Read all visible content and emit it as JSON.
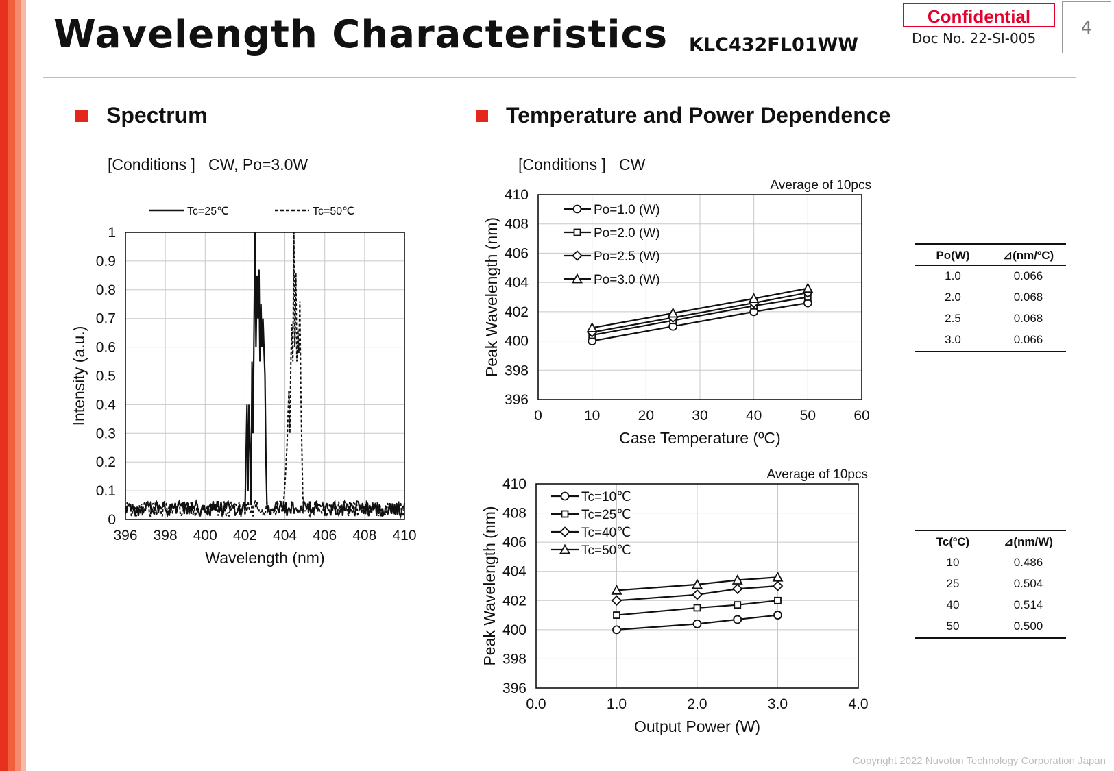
{
  "header": {
    "title": "Wavelength Characteristics",
    "subtitle": "KLC432FL01WW",
    "confidential": "Confidential",
    "doc_no": "Doc No. 22-SI-005",
    "page_number": "4"
  },
  "sections": {
    "spectrum": {
      "title": "Spectrum",
      "conditions": "[Conditions ]   CW, Po=3.0W"
    },
    "dependence": {
      "title": "Temperature and Power Dependence",
      "conditions": "[Conditions ]   CW"
    }
  },
  "footer": {
    "copyright": "Copyright 2022 Nuvoton Technology Corporation Japan"
  },
  "colors": {
    "accent": "#e4261c",
    "confidential": "#e4002b"
  },
  "tables": {
    "temperature": {
      "headers": [
        "Po(W)",
        "⊿(nm/ºC)"
      ],
      "rows": [
        [
          "1.0",
          "0.066"
        ],
        [
          "2.0",
          "0.068"
        ],
        [
          "2.5",
          "0.068"
        ],
        [
          "3.0",
          "0.066"
        ]
      ]
    },
    "power": {
      "headers": [
        "Tc(ºC)",
        "⊿(nm/W)"
      ],
      "rows": [
        [
          "10",
          "0.486"
        ],
        [
          "25",
          "0.504"
        ],
        [
          "40",
          "0.514"
        ],
        [
          "50",
          "0.500"
        ]
      ]
    }
  },
  "chart_data": [
    {
      "type": "line",
      "title": "",
      "xlabel": "Wavelength  (nm)",
      "ylabel": "Intensity  (a.u.)",
      "xlim": [
        396,
        410
      ],
      "ylim": [
        0,
        1
      ],
      "xticks": [
        "396",
        "398",
        "400",
        "402",
        "404",
        "406",
        "408",
        "410"
      ],
      "yticks": [
        "0",
        "0.1",
        "0.2",
        "0.3",
        "0.4",
        "0.5",
        "0.6",
        "0.7",
        "0.8",
        "0.9",
        "1"
      ],
      "grid": true,
      "legend": "top",
      "noise_level": 0.03,
      "series": [
        {
          "name": "Tc=25℃",
          "style": "solid",
          "x": [
            402.0,
            402.1,
            402.15,
            402.2,
            402.25,
            402.3,
            402.35,
            402.4,
            402.45,
            402.5,
            402.55,
            402.6,
            402.65,
            402.7,
            402.75,
            402.8,
            402.85,
            402.9,
            402.95,
            403.0,
            403.05,
            403.1,
            403.15
          ],
          "y": [
            0.03,
            0.4,
            0.1,
            0.4,
            0.25,
            0.05,
            0.55,
            0.3,
            0.65,
            1.0,
            0.6,
            0.85,
            0.7,
            0.87,
            0.55,
            0.75,
            0.6,
            0.7,
            0.6,
            0.5,
            0.2,
            0.05,
            0.03
          ]
        },
        {
          "name": "Tc=50℃",
          "style": "dashed",
          "x": [
            403.9,
            404.0,
            404.1,
            404.2,
            404.25,
            404.3,
            404.35,
            404.4,
            404.45,
            404.5,
            404.55,
            404.6,
            404.65,
            404.7,
            404.75,
            404.8,
            404.85,
            404.9,
            404.95,
            405.0
          ],
          "y": [
            0.03,
            0.12,
            0.25,
            0.45,
            0.3,
            0.55,
            0.68,
            0.55,
            1.0,
            0.6,
            0.86,
            0.55,
            0.66,
            0.58,
            0.76,
            0.45,
            0.25,
            0.08,
            0.03,
            0.03
          ]
        }
      ]
    },
    {
      "type": "line",
      "title": "",
      "annotation": "Average of 10pcs",
      "xlabel": "Case Temperature (ºC)",
      "ylabel": "Peak Wavelength  (nm)",
      "xlim": [
        0,
        60
      ],
      "ylim": [
        396,
        410
      ],
      "xticks": [
        "0",
        "10",
        "20",
        "30",
        "40",
        "50",
        "60"
      ],
      "yticks": [
        "396",
        "398",
        "400",
        "402",
        "404",
        "406",
        "408",
        "410"
      ],
      "grid": true,
      "legend": "top-left",
      "x": [
        10,
        25,
        40,
        50
      ],
      "series": [
        {
          "name": "Po=1.0 (W)",
          "marker": "circle",
          "values": [
            400.0,
            401.0,
            402.0,
            402.6
          ]
        },
        {
          "name": "Po=2.0 (W)",
          "marker": "square",
          "values": [
            400.4,
            401.4,
            402.4,
            403.0
          ]
        },
        {
          "name": "Po=2.5 (W)",
          "marker": "diamond",
          "values": [
            400.6,
            401.6,
            402.6,
            403.3
          ]
        },
        {
          "name": "Po=3.0 (W)",
          "marker": "triangle",
          "values": [
            400.9,
            401.9,
            402.9,
            403.6
          ]
        }
      ]
    },
    {
      "type": "line",
      "title": "",
      "annotation": "Average of 10pcs",
      "xlabel": "Output Power (W)",
      "ylabel": "Peak Wavelength  (nm)",
      "xlim": [
        0,
        4
      ],
      "ylim": [
        396,
        410
      ],
      "xticks": [
        "0.0",
        "1.0",
        "2.0",
        "3.0",
        "4.0"
      ],
      "yticks": [
        "396",
        "398",
        "400",
        "402",
        "404",
        "406",
        "408",
        "410"
      ],
      "grid": true,
      "legend": "top-left",
      "x": [
        1.0,
        2.0,
        2.5,
        3.0
      ],
      "series": [
        {
          "name": "Tc=10℃",
          "marker": "circle",
          "values": [
            400.0,
            400.4,
            400.7,
            401.0
          ]
        },
        {
          "name": "Tc=25℃",
          "marker": "square",
          "values": [
            401.0,
            401.5,
            401.7,
            402.0
          ]
        },
        {
          "name": "Tc=40℃",
          "marker": "diamond",
          "values": [
            402.0,
            402.4,
            402.8,
            403.0
          ]
        },
        {
          "name": "Tc=50℃",
          "marker": "triangle",
          "values": [
            402.7,
            403.1,
            403.4,
            403.6
          ]
        }
      ]
    }
  ]
}
